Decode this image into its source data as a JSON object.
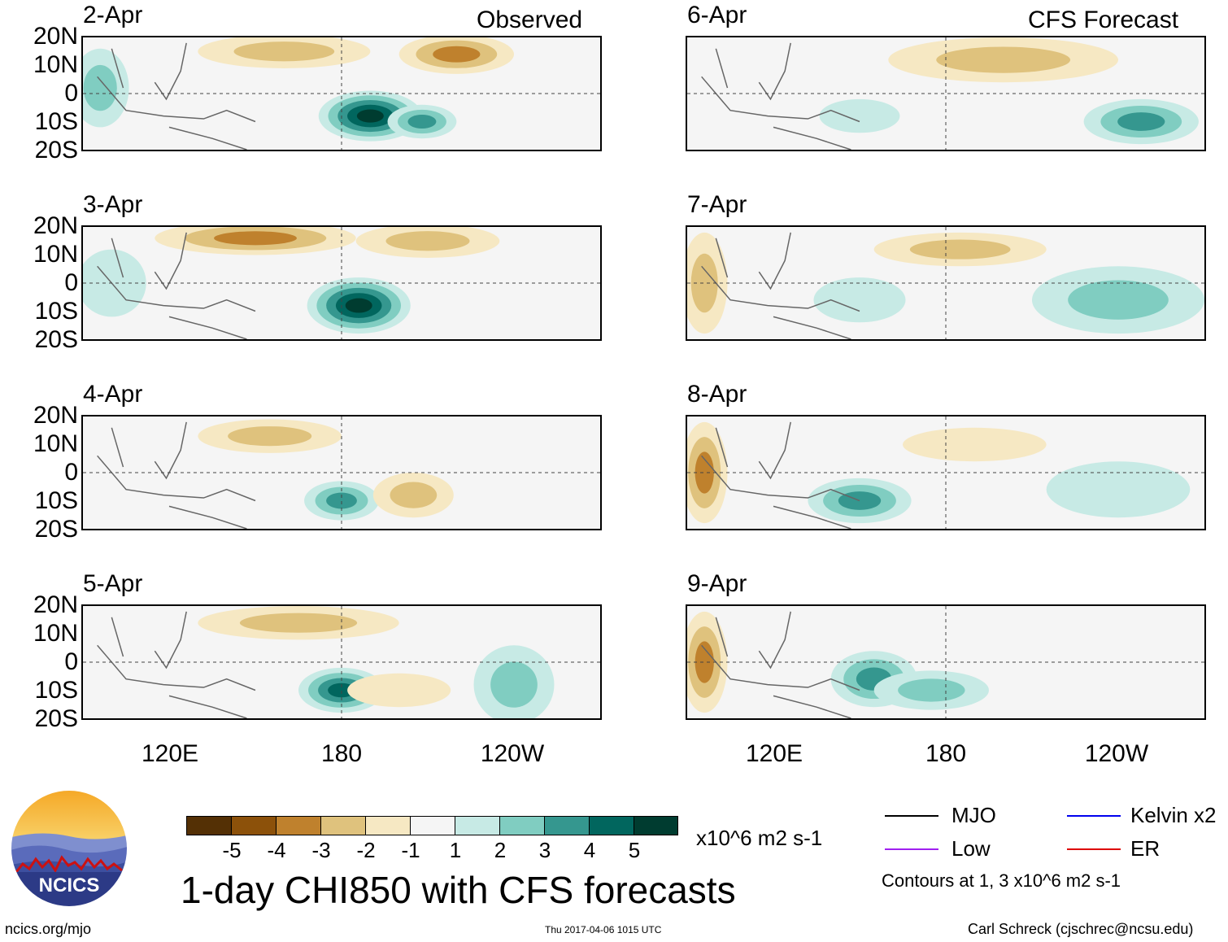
{
  "chart_data": {
    "type": "heatmap",
    "title": "1-day CHI850 with CFS forecasts",
    "subtitle_left": "Observed",
    "subtitle_right": "CFS Forecast",
    "units": "x10^6 m2 s-1",
    "lat_labels": [
      "20N",
      "10N",
      "0",
      "10S",
      "20S"
    ],
    "lon_labels": [
      "120E",
      "180",
      "120W"
    ],
    "lat_range": [
      -20,
      20
    ],
    "lon_range": [
      90,
      270
    ],
    "colorbar": {
      "ticks": [
        "-5",
        "-4",
        "-3",
        "-2",
        "-1",
        "1",
        "2",
        "3",
        "4",
        "5"
      ],
      "colors": [
        "#543005",
        "#8c510a",
        "#bf812d",
        "#dfc27d",
        "#f6e8c3",
        "#f5f5f5",
        "#c7eae5",
        "#80cdc1",
        "#35978f",
        "#01665e",
        "#003c30"
      ]
    },
    "panels": [
      {
        "date": "2-Apr",
        "source": "Observed",
        "blobs": [
          {
            "lon": 190,
            "lat": -8,
            "rx": 18,
            "ry": 9,
            "value": 5
          },
          {
            "lon": 208,
            "lat": -10,
            "rx": 12,
            "ry": 6,
            "value": 3
          },
          {
            "lon": 220,
            "lat": 14,
            "rx": 20,
            "ry": 7,
            "value": -3
          },
          {
            "lon": 160,
            "lat": 15,
            "rx": 30,
            "ry": 6,
            "value": -2
          },
          {
            "lon": 96,
            "lat": 2,
            "rx": 10,
            "ry": 14,
            "value": 2
          }
        ]
      },
      {
        "date": "3-Apr",
        "source": "Observed",
        "blobs": [
          {
            "lon": 186,
            "lat": -8,
            "rx": 18,
            "ry": 10,
            "value": 5
          },
          {
            "lon": 150,
            "lat": 16,
            "rx": 35,
            "ry": 6,
            "value": -3
          },
          {
            "lon": 210,
            "lat": 15,
            "rx": 25,
            "ry": 6,
            "value": -2
          },
          {
            "lon": 100,
            "lat": 0,
            "rx": 12,
            "ry": 12,
            "value": 1
          }
        ]
      },
      {
        "date": "4-Apr",
        "source": "Observed",
        "blobs": [
          {
            "lon": 180,
            "lat": -10,
            "rx": 13,
            "ry": 7,
            "value": 3
          },
          {
            "lon": 155,
            "lat": 13,
            "rx": 25,
            "ry": 6,
            "value": -2
          },
          {
            "lon": 205,
            "lat": -8,
            "rx": 14,
            "ry": 8,
            "value": -2
          }
        ]
      },
      {
        "date": "5-Apr",
        "source": "Observed",
        "blobs": [
          {
            "lon": 180,
            "lat": -10,
            "rx": 15,
            "ry": 8,
            "value": 4
          },
          {
            "lon": 240,
            "lat": -8,
            "rx": 14,
            "ry": 14,
            "value": 2
          },
          {
            "lon": 165,
            "lat": 14,
            "rx": 35,
            "ry": 6,
            "value": -2
          },
          {
            "lon": 200,
            "lat": -10,
            "rx": 18,
            "ry": 6,
            "value": -1
          }
        ]
      },
      {
        "date": "6-Apr",
        "source": "CFS Forecast",
        "blobs": [
          {
            "lon": 248,
            "lat": -10,
            "rx": 20,
            "ry": 8,
            "value": 3
          },
          {
            "lon": 200,
            "lat": 12,
            "rx": 40,
            "ry": 8,
            "value": -2
          },
          {
            "lon": 150,
            "lat": -8,
            "rx": 14,
            "ry": 6,
            "value": 1
          }
        ]
      },
      {
        "date": "7-Apr",
        "source": "CFS Forecast",
        "blobs": [
          {
            "lon": 240,
            "lat": -6,
            "rx": 30,
            "ry": 12,
            "value": 2
          },
          {
            "lon": 185,
            "lat": 12,
            "rx": 30,
            "ry": 6,
            "value": -2
          },
          {
            "lon": 96,
            "lat": 0,
            "rx": 8,
            "ry": 18,
            "value": -2
          },
          {
            "lon": 150,
            "lat": -6,
            "rx": 16,
            "ry": 8,
            "value": 1
          }
        ]
      },
      {
        "date": "8-Apr",
        "source": "CFS Forecast",
        "blobs": [
          {
            "lon": 150,
            "lat": -10,
            "rx": 18,
            "ry": 8,
            "value": 3
          },
          {
            "lon": 96,
            "lat": 0,
            "rx": 8,
            "ry": 18,
            "value": -3
          },
          {
            "lon": 190,
            "lat": 10,
            "rx": 25,
            "ry": 6,
            "value": -1
          },
          {
            "lon": 240,
            "lat": -6,
            "rx": 25,
            "ry": 10,
            "value": 1
          }
        ]
      },
      {
        "date": "9-Apr",
        "source": "CFS Forecast",
        "blobs": [
          {
            "lon": 155,
            "lat": -6,
            "rx": 15,
            "ry": 10,
            "value": 3
          },
          {
            "lon": 96,
            "lat": 0,
            "rx": 8,
            "ry": 18,
            "value": -3
          },
          {
            "lon": 175,
            "lat": -10,
            "rx": 20,
            "ry": 7,
            "value": 2
          }
        ]
      }
    ],
    "legend": [
      {
        "label": "MJO",
        "color": "#000000"
      },
      {
        "label": "Kelvin x2",
        "color": "#0000ee"
      },
      {
        "label": "Low",
        "color": "#a020f0"
      },
      {
        "label": "ER",
        "color": "#dd0000"
      }
    ],
    "contour_note": "Contours at 1, 3 x10^6 m2 s-1"
  },
  "logo": {
    "text": "NCICS"
  },
  "footer": {
    "left": "ncics.org/mjo",
    "center": "Thu 2017-04-06 1015 UTC",
    "right": "Carl Schreck (cjschrec@ncsu.edu)"
  }
}
